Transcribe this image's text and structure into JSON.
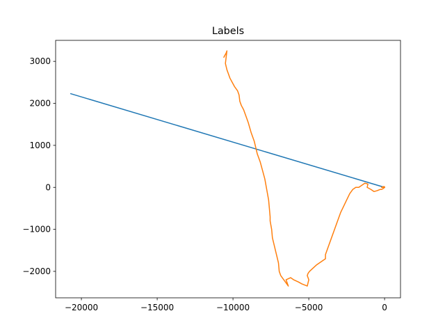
{
  "chart_data": {
    "type": "line",
    "title": "Labels",
    "xlabel": "",
    "ylabel": "",
    "xlim": [
      -21700,
      1050
    ],
    "ylim": [
      -2630,
      3500
    ],
    "xticks": [
      -20000,
      -15000,
      -10000,
      -5000,
      0
    ],
    "yticks": [
      -2000,
      -1000,
      0,
      1000,
      2000,
      3000
    ],
    "xtick_labels": [
      "−20000",
      "−15000",
      "−10000",
      "−5000",
      "0"
    ],
    "ytick_labels": [
      "−2000",
      "−1000",
      "0",
      "1000",
      "2000",
      "3000"
    ],
    "grid": false,
    "series": [
      {
        "color": "#1f77b4",
        "x": [
          -20700,
          0
        ],
        "y": [
          2230,
          0
        ]
      },
      {
        "color": "#ff7f0e",
        "x": [
          -10600,
          -10450,
          -10400,
          -10500,
          -10400,
          -10300,
          -10200,
          -10050,
          -9900,
          -9700,
          -9600,
          -9550,
          -9450,
          -9300,
          -9150,
          -9000,
          -8800,
          -8600,
          -8400,
          -8200,
          -8050,
          -7900,
          -7800,
          -7700,
          -7650,
          -7600,
          -7550,
          -7550,
          -7450,
          -7400,
          -7300,
          -7200,
          -7100,
          -7000,
          -6950,
          -6850,
          -6750,
          -6650,
          -6550,
          -6450,
          -6350,
          -6500,
          -6200,
          -6000,
          -5700,
          -5450,
          -5100,
          -5000,
          -5100,
          -5050,
          -4950,
          -4800,
          -4500,
          -4100,
          -3900,
          -3900,
          -3700,
          -3500,
          -3300,
          -3100,
          -2900,
          -2700,
          -2500,
          -2300,
          -2100,
          -1900,
          -1700,
          -1500,
          -1300,
          -1100,
          -1150,
          -900,
          -700,
          -500,
          -300,
          -200,
          -100,
          0,
          -200,
          -50,
          0
        ],
        "y": [
          3100,
          3200,
          3250,
          2950,
          2800,
          2700,
          2600,
          2500,
          2400,
          2300,
          2200,
          2050,
          1950,
          1850,
          1700,
          1550,
          1300,
          1100,
          800,
          600,
          400,
          200,
          0,
          -200,
          -300,
          -500,
          -700,
          -800,
          -1000,
          -1200,
          -1350,
          -1500,
          -1650,
          -1800,
          -2000,
          -2100,
          -2150,
          -2200,
          -2250,
          -2300,
          -2350,
          -2200,
          -2150,
          -2200,
          -2250,
          -2300,
          -2350,
          -2200,
          -2100,
          -2050,
          -2000,
          -1950,
          -1850,
          -1750,
          -1700,
          -1600,
          -1400,
          -1200,
          -1000,
          -800,
          -600,
          -450,
          -300,
          -150,
          -50,
          0,
          0,
          50,
          100,
          80,
          0,
          -50,
          -100,
          -80,
          -50,
          -50,
          -30,
          0,
          0,
          20,
          10
        ]
      }
    ]
  }
}
